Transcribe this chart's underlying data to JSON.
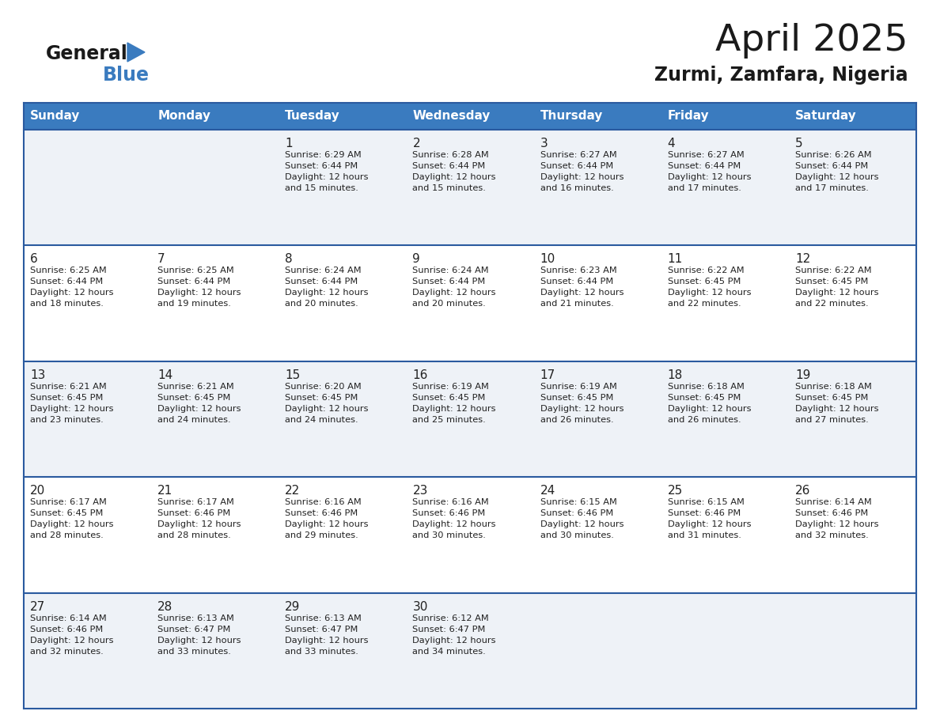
{
  "title": "April 2025",
  "subtitle": "Zurmi, Zamfara, Nigeria",
  "days_of_week": [
    "Sunday",
    "Monday",
    "Tuesday",
    "Wednesday",
    "Thursday",
    "Friday",
    "Saturday"
  ],
  "header_bg_color": "#3a7bbf",
  "header_text_color": "#ffffff",
  "cell_bg_color_odd": "#eef2f7",
  "cell_bg_color_even": "#ffffff",
  "row_line_color": "#2a5a9f",
  "text_color": "#222222",
  "calendar_data": [
    [
      {
        "day": null,
        "sunrise": null,
        "sunset": null,
        "daylight_hours": null,
        "daylight_minutes": null
      },
      {
        "day": null,
        "sunrise": null,
        "sunset": null,
        "daylight_hours": null,
        "daylight_minutes": null
      },
      {
        "day": 1,
        "sunrise": "6:29 AM",
        "sunset": "6:44 PM",
        "daylight_hours": 12,
        "daylight_minutes": 15
      },
      {
        "day": 2,
        "sunrise": "6:28 AM",
        "sunset": "6:44 PM",
        "daylight_hours": 12,
        "daylight_minutes": 15
      },
      {
        "day": 3,
        "sunrise": "6:27 AM",
        "sunset": "6:44 PM",
        "daylight_hours": 12,
        "daylight_minutes": 16
      },
      {
        "day": 4,
        "sunrise": "6:27 AM",
        "sunset": "6:44 PM",
        "daylight_hours": 12,
        "daylight_minutes": 17
      },
      {
        "day": 5,
        "sunrise": "6:26 AM",
        "sunset": "6:44 PM",
        "daylight_hours": 12,
        "daylight_minutes": 17
      }
    ],
    [
      {
        "day": 6,
        "sunrise": "6:25 AM",
        "sunset": "6:44 PM",
        "daylight_hours": 12,
        "daylight_minutes": 18
      },
      {
        "day": 7,
        "sunrise": "6:25 AM",
        "sunset": "6:44 PM",
        "daylight_hours": 12,
        "daylight_minutes": 19
      },
      {
        "day": 8,
        "sunrise": "6:24 AM",
        "sunset": "6:44 PM",
        "daylight_hours": 12,
        "daylight_minutes": 20
      },
      {
        "day": 9,
        "sunrise": "6:24 AM",
        "sunset": "6:44 PM",
        "daylight_hours": 12,
        "daylight_minutes": 20
      },
      {
        "day": 10,
        "sunrise": "6:23 AM",
        "sunset": "6:44 PM",
        "daylight_hours": 12,
        "daylight_minutes": 21
      },
      {
        "day": 11,
        "sunrise": "6:22 AM",
        "sunset": "6:45 PM",
        "daylight_hours": 12,
        "daylight_minutes": 22
      },
      {
        "day": 12,
        "sunrise": "6:22 AM",
        "sunset": "6:45 PM",
        "daylight_hours": 12,
        "daylight_minutes": 22
      }
    ],
    [
      {
        "day": 13,
        "sunrise": "6:21 AM",
        "sunset": "6:45 PM",
        "daylight_hours": 12,
        "daylight_minutes": 23
      },
      {
        "day": 14,
        "sunrise": "6:21 AM",
        "sunset": "6:45 PM",
        "daylight_hours": 12,
        "daylight_minutes": 24
      },
      {
        "day": 15,
        "sunrise": "6:20 AM",
        "sunset": "6:45 PM",
        "daylight_hours": 12,
        "daylight_minutes": 24
      },
      {
        "day": 16,
        "sunrise": "6:19 AM",
        "sunset": "6:45 PM",
        "daylight_hours": 12,
        "daylight_minutes": 25
      },
      {
        "day": 17,
        "sunrise": "6:19 AM",
        "sunset": "6:45 PM",
        "daylight_hours": 12,
        "daylight_minutes": 26
      },
      {
        "day": 18,
        "sunrise": "6:18 AM",
        "sunset": "6:45 PM",
        "daylight_hours": 12,
        "daylight_minutes": 26
      },
      {
        "day": 19,
        "sunrise": "6:18 AM",
        "sunset": "6:45 PM",
        "daylight_hours": 12,
        "daylight_minutes": 27
      }
    ],
    [
      {
        "day": 20,
        "sunrise": "6:17 AM",
        "sunset": "6:45 PM",
        "daylight_hours": 12,
        "daylight_minutes": 28
      },
      {
        "day": 21,
        "sunrise": "6:17 AM",
        "sunset": "6:46 PM",
        "daylight_hours": 12,
        "daylight_minutes": 28
      },
      {
        "day": 22,
        "sunrise": "6:16 AM",
        "sunset": "6:46 PM",
        "daylight_hours": 12,
        "daylight_minutes": 29
      },
      {
        "day": 23,
        "sunrise": "6:16 AM",
        "sunset": "6:46 PM",
        "daylight_hours": 12,
        "daylight_minutes": 30
      },
      {
        "day": 24,
        "sunrise": "6:15 AM",
        "sunset": "6:46 PM",
        "daylight_hours": 12,
        "daylight_minutes": 30
      },
      {
        "day": 25,
        "sunrise": "6:15 AM",
        "sunset": "6:46 PM",
        "daylight_hours": 12,
        "daylight_minutes": 31
      },
      {
        "day": 26,
        "sunrise": "6:14 AM",
        "sunset": "6:46 PM",
        "daylight_hours": 12,
        "daylight_minutes": 32
      }
    ],
    [
      {
        "day": 27,
        "sunrise": "6:14 AM",
        "sunset": "6:46 PM",
        "daylight_hours": 12,
        "daylight_minutes": 32
      },
      {
        "day": 28,
        "sunrise": "6:13 AM",
        "sunset": "6:47 PM",
        "daylight_hours": 12,
        "daylight_minutes": 33
      },
      {
        "day": 29,
        "sunrise": "6:13 AM",
        "sunset": "6:47 PM",
        "daylight_hours": 12,
        "daylight_minutes": 33
      },
      {
        "day": 30,
        "sunrise": "6:12 AM",
        "sunset": "6:47 PM",
        "daylight_hours": 12,
        "daylight_minutes": 34
      },
      {
        "day": null,
        "sunrise": null,
        "sunset": null,
        "daylight_hours": null,
        "daylight_minutes": null
      },
      {
        "day": null,
        "sunrise": null,
        "sunset": null,
        "daylight_hours": null,
        "daylight_minutes": null
      },
      {
        "day": null,
        "sunrise": null,
        "sunset": null,
        "daylight_hours": null,
        "daylight_minutes": null
      }
    ]
  ],
  "logo_general_color": "#1a1a1a",
  "logo_blue_color": "#3a7bbf",
  "logo_triangle_color": "#3a7bbf"
}
